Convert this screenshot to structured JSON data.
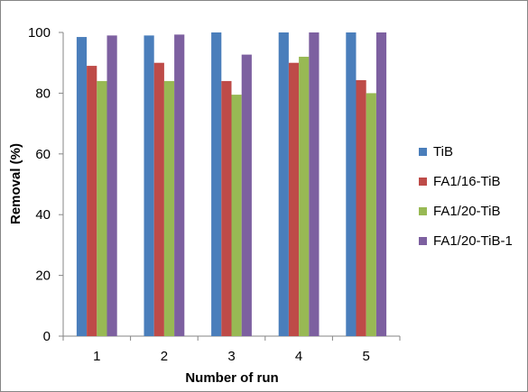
{
  "chart_data": {
    "type": "bar",
    "categories": [
      "1",
      "2",
      "3",
      "4",
      "5"
    ],
    "series": [
      {
        "name": "TiB",
        "color": "#4A7EBB",
        "values": [
          98.5,
          99,
          100,
          100,
          100
        ]
      },
      {
        "name": "FA1/16-TiB",
        "color": "#BE4B48",
        "values": [
          89,
          90,
          84,
          90,
          84.3
        ]
      },
      {
        "name": "FA1/20-TiB",
        "color": "#98B954",
        "values": [
          84,
          84,
          79.5,
          92,
          80
        ]
      },
      {
        "name": "FA1/20-TiB-1",
        "color": "#7D60A0",
        "values": [
          99,
          99.3,
          92.7,
          100,
          100
        ]
      }
    ],
    "xlabel": "Number of run",
    "ylabel": "Removal (%)",
    "ylim": [
      0,
      100
    ],
    "yticks": [
      "0",
      "20",
      "40",
      "60",
      "80",
      "100"
    ],
    "grid": false,
    "legend_position": "right"
  }
}
